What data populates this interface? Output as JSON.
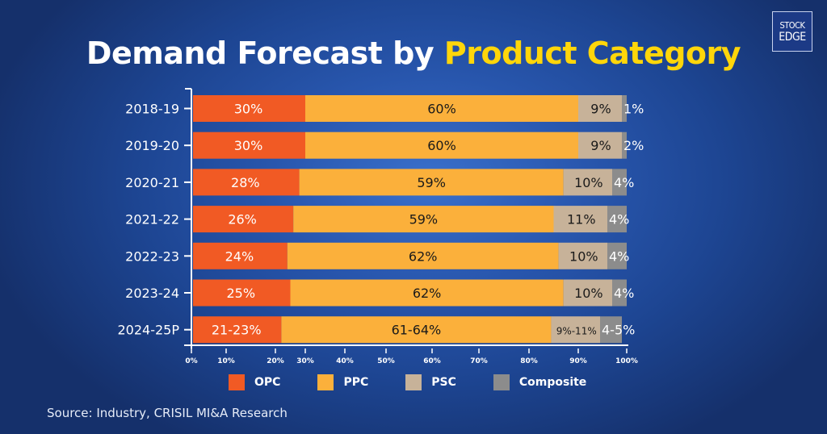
{
  "header": {
    "title_part1": "Demand Forecast by ",
    "title_part2": "Product Category",
    "title_highlight_color": "#ffd60a"
  },
  "logo": {
    "line1": "STOCK",
    "line2": "EDGE"
  },
  "chart_data": {
    "type": "bar",
    "orientation": "horizontal",
    "stacked": true,
    "title": "Demand Forecast by Product Category",
    "xlabel": "",
    "ylabel": "",
    "xlim": [
      0,
      100
    ],
    "x_ticks": [
      "0%",
      "10%",
      "20%",
      "30%",
      "40%",
      "50%",
      "60%",
      "70%",
      "80%",
      "90%",
      "100%"
    ],
    "categories": [
      "2018-19",
      "2019-20",
      "2020-21",
      "2021-22",
      "2022-23",
      "2023-24",
      "2024-25P"
    ],
    "series": [
      {
        "name": "OPC",
        "color": "#f15a24",
        "label_color": "#ffffff",
        "values": [
          30,
          30,
          28,
          26,
          24,
          25,
          22
        ],
        "labels": [
          "30%",
          "30%",
          "28%",
          "26%",
          "24%",
          "25%",
          "21-23%"
        ]
      },
      {
        "name": "PPC",
        "color": "#fbb03b",
        "label_color": "#1a1a1a",
        "values": [
          60,
          60,
          59,
          59,
          62,
          62,
          62.5
        ],
        "labels": [
          "60%",
          "60%",
          "59%",
          "59%",
          "62%",
          "62%",
          "61-64%"
        ]
      },
      {
        "name": "PSC",
        "color": "#c7b299",
        "label_color": "#1a1a1a",
        "values": [
          9,
          9,
          10,
          11,
          10,
          10,
          10
        ],
        "labels": [
          "9%",
          "9%",
          "10%",
          "11%",
          "10%",
          "10%",
          "9%-11%"
        ]
      },
      {
        "name": "Composite",
        "color": "#8c8c8c",
        "label_color": "#ffffff",
        "values": [
          1,
          2,
          4,
          4,
          4,
          4,
          4.5
        ],
        "labels": [
          "1%",
          "2%",
          "4%",
          "4%",
          "4%",
          "4%",
          "4-5%"
        ]
      }
    ],
    "grid": false,
    "legend_position": "bottom"
  },
  "legend": [
    {
      "label": "OPC",
      "color": "#f15a24"
    },
    {
      "label": "PPC",
      "color": "#fbb03b"
    },
    {
      "label": "PSC",
      "color": "#c7b299"
    },
    {
      "label": "Composite",
      "color": "#8c8c8c"
    }
  ],
  "footer": {
    "source": "Source: Industry, CRISIL MI&A Research"
  }
}
